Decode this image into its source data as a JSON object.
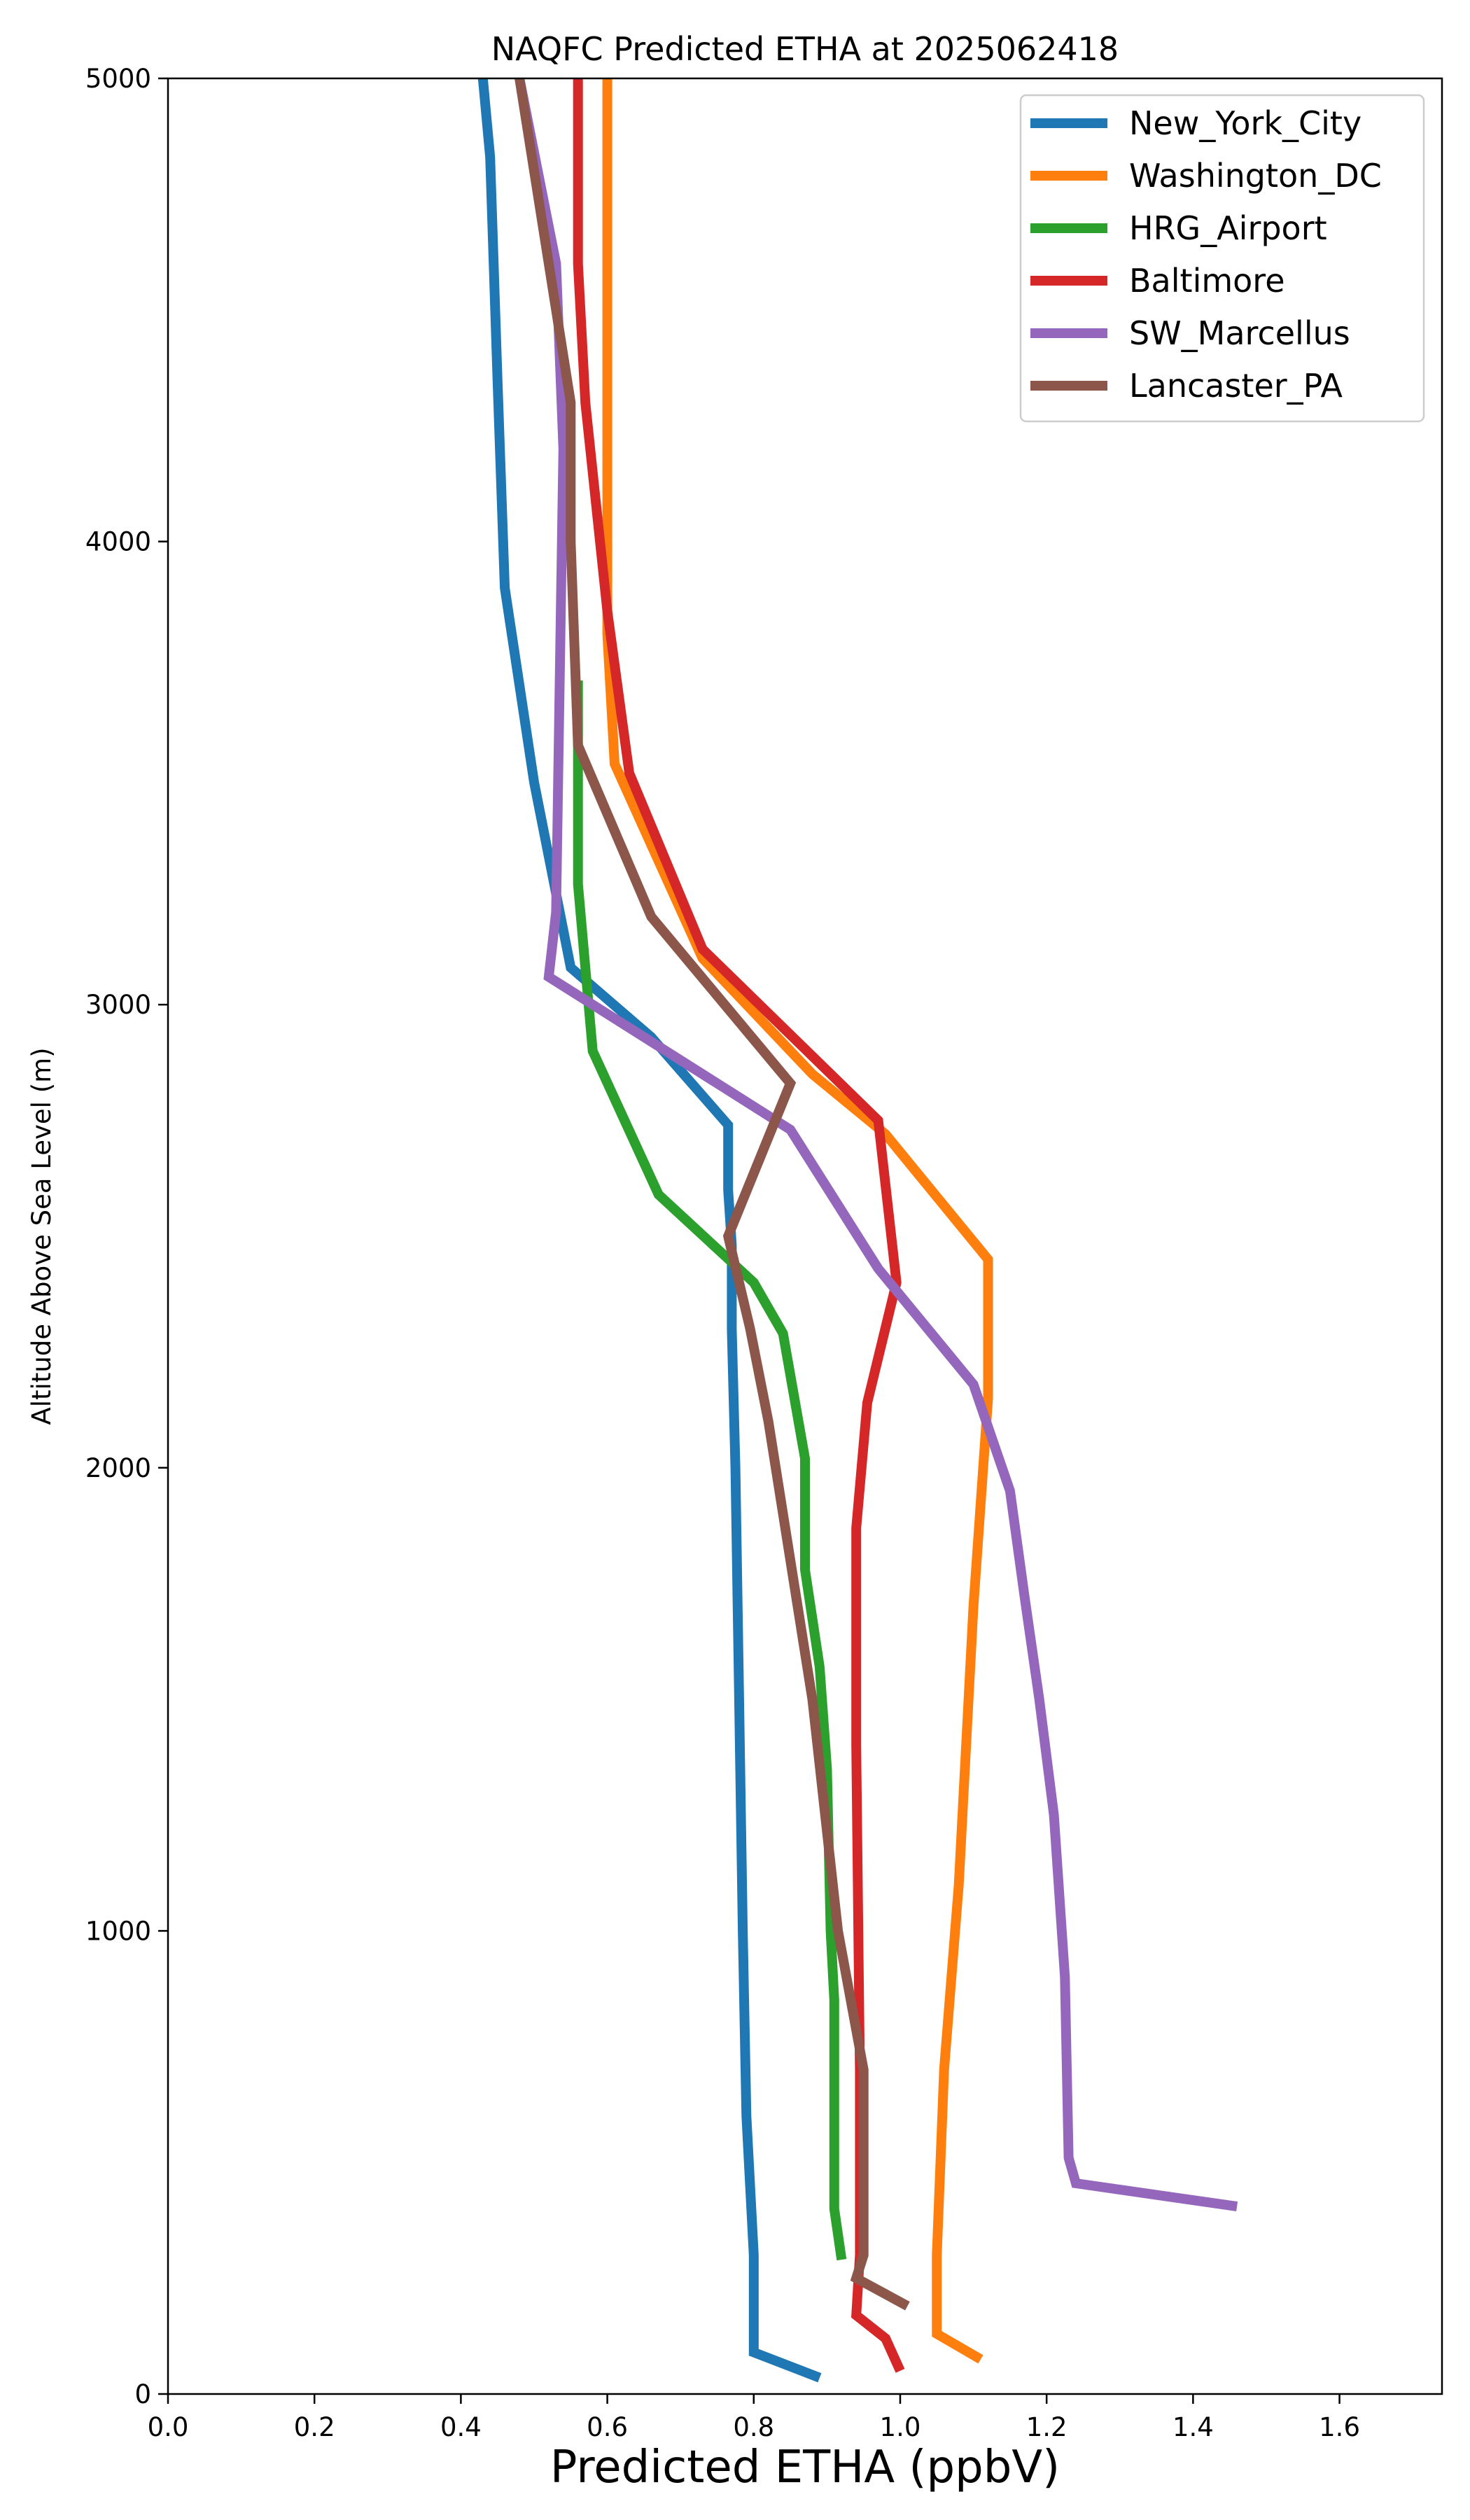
{
  "chart_data": {
    "type": "line",
    "title": "NAQFC Predicted ETHA at 2025062418",
    "xlabel": "Predicted ETHA (ppbV)",
    "ylabel": "Altitude Above Sea Level (m)",
    "xlim": [
      0.0,
      1.74
    ],
    "ylim": [
      0,
      5000
    ],
    "xticks": [
      "0.0",
      "0.2",
      "0.4",
      "0.6",
      "0.8",
      "1.0",
      "1.2",
      "1.4",
      "1.6"
    ],
    "yticks": [
      "0",
      "1000",
      "2000",
      "3000",
      "4000",
      "5000"
    ],
    "grid": false,
    "legend_position": "top-right",
    "series": [
      {
        "name": "New_York_City",
        "color": "#1f77b4",
        "points": [
          [
            0.89,
            35
          ],
          [
            0.8,
            90
          ],
          [
            0.8,
            150
          ],
          [
            0.8,
            300
          ],
          [
            0.79,
            600
          ],
          [
            0.785,
            1000
          ],
          [
            0.78,
            1500
          ],
          [
            0.775,
            2000
          ],
          [
            0.77,
            2300
          ],
          [
            0.77,
            2480
          ],
          [
            0.765,
            2600
          ],
          [
            0.765,
            2740
          ],
          [
            0.66,
            2930
          ],
          [
            0.55,
            3080
          ],
          [
            0.5,
            3480
          ],
          [
            0.46,
            3900
          ],
          [
            0.45,
            4350
          ],
          [
            0.44,
            4830
          ],
          [
            0.43,
            5000
          ]
        ]
      },
      {
        "name": "Washington_DC",
        "color": "#ff7f0e",
        "points": [
          [
            1.11,
            75
          ],
          [
            1.05,
            130
          ],
          [
            1.05,
            300
          ],
          [
            1.06,
            700
          ],
          [
            1.08,
            1100
          ],
          [
            1.1,
            1700
          ],
          [
            1.12,
            2150
          ],
          [
            1.12,
            2450
          ],
          [
            0.98,
            2720
          ],
          [
            0.88,
            2850
          ],
          [
            0.73,
            3100
          ],
          [
            0.61,
            3520
          ],
          [
            0.6,
            3800
          ],
          [
            0.6,
            4400
          ],
          [
            0.6,
            4900
          ],
          [
            0.6,
            5000
          ]
        ]
      },
      {
        "name": "HRG_Airport",
        "color": "#2ca02c",
        "points": [
          [
            0.92,
            290
          ],
          [
            0.91,
            400
          ],
          [
            0.91,
            850
          ],
          [
            0.905,
            1000
          ],
          [
            0.9,
            1350
          ],
          [
            0.89,
            1570
          ],
          [
            0.87,
            1780
          ],
          [
            0.87,
            2020
          ],
          [
            0.84,
            2290
          ],
          [
            0.8,
            2400
          ],
          [
            0.67,
            2590
          ],
          [
            0.58,
            2900
          ],
          [
            0.56,
            3260
          ],
          [
            0.56,
            3550
          ],
          [
            0.56,
            3700
          ]
        ]
      },
      {
        "name": "Baltimore",
        "color": "#d62728",
        "points": [
          [
            1.0,
            50
          ],
          [
            0.98,
            120
          ],
          [
            0.94,
            170
          ],
          [
            0.945,
            300
          ],
          [
            0.945,
            700
          ],
          [
            0.94,
            1400
          ],
          [
            0.94,
            1870
          ],
          [
            0.955,
            2140
          ],
          [
            0.995,
            2400
          ],
          [
            0.97,
            2750
          ],
          [
            0.73,
            3120
          ],
          [
            0.63,
            3500
          ],
          [
            0.6,
            3850
          ],
          [
            0.57,
            4300
          ],
          [
            0.56,
            4600
          ],
          [
            0.56,
            5000
          ]
        ]
      },
      {
        "name": "SW_Marcellus",
        "color": "#9467bd",
        "points": [
          [
            1.46,
            405
          ],
          [
            1.24,
            455
          ],
          [
            1.23,
            510
          ],
          [
            1.225,
            900
          ],
          [
            1.21,
            1250
          ],
          [
            1.19,
            1500
          ],
          [
            1.17,
            1720
          ],
          [
            1.15,
            1950
          ],
          [
            1.1,
            2180
          ],
          [
            0.97,
            2430
          ],
          [
            0.85,
            2730
          ],
          [
            0.52,
            3060
          ],
          [
            0.53,
            3200
          ],
          [
            0.535,
            3700
          ],
          [
            0.54,
            4200
          ],
          [
            0.53,
            4600
          ],
          [
            0.48,
            5000
          ]
        ]
      },
      {
        "name": "Lancaster_PA",
        "color": "#8c564b",
        "points": [
          [
            1.01,
            190
          ],
          [
            0.94,
            250
          ],
          [
            0.95,
            300
          ],
          [
            0.95,
            700
          ],
          [
            0.915,
            1000
          ],
          [
            0.88,
            1500
          ],
          [
            0.82,
            2100
          ],
          [
            0.795,
            2300
          ],
          [
            0.765,
            2500
          ],
          [
            0.85,
            2830
          ],
          [
            0.66,
            3190
          ],
          [
            0.56,
            3560
          ],
          [
            0.55,
            4000
          ],
          [
            0.55,
            4300
          ],
          [
            0.48,
            5000
          ]
        ]
      }
    ]
  }
}
